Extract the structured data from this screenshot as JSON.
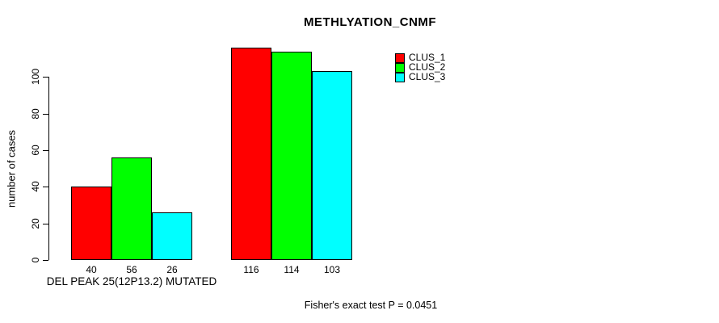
{
  "title": "METHLYATION_CNMF",
  "ylabel": "number of cases",
  "xlabel": "DEL PEAK 25(12P13.2) MUTATED",
  "footnote": "Fisher's exact test P = 0.0451",
  "legend": [
    {
      "label": "CLUS_1",
      "color": "#ff0000"
    },
    {
      "label": "CLUS_2",
      "color": "#00ff00"
    },
    {
      "label": "CLUS_3",
      "color": "#00ffff"
    }
  ],
  "chart_data": {
    "type": "bar",
    "title": "METHLYATION_CNMF",
    "xlabel": "DEL PEAK 25(12P13.2) MUTATED",
    "ylabel": "number of cases",
    "categories": [
      "DEL PEAK 25(12P13.2) MUTATED",
      ""
    ],
    "series": [
      {
        "name": "CLUS_1",
        "color": "#ff0000",
        "values": [
          40,
          116
        ]
      },
      {
        "name": "CLUS_2",
        "color": "#00ff00",
        "values": [
          56,
          114
        ]
      },
      {
        "name": "CLUS_3",
        "color": "#00ffff",
        "values": [
          26,
          103
        ]
      }
    ],
    "bar_value_labels": [
      [
        "40",
        "56",
        "26"
      ],
      [
        "116",
        "114",
        "103"
      ]
    ],
    "yticks": [
      0,
      20,
      40,
      60,
      80,
      100
    ],
    "ylim": [
      0,
      100
    ],
    "grid": false,
    "legend_position": "top-right",
    "annotation": "Fisher's exact test P = 0.0451"
  }
}
